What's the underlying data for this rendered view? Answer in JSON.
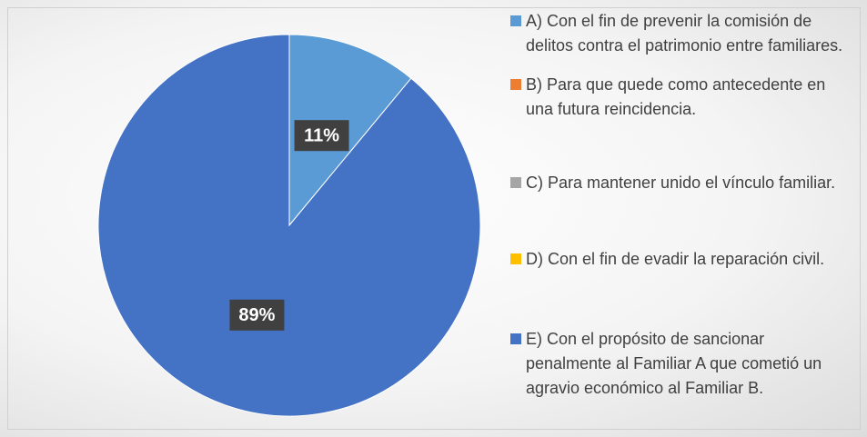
{
  "chart_data": {
    "type": "pie",
    "categories": [
      "A) Con el fin de prevenir la comisión de delitos contra el patrimonio entre familiares.",
      "B)  Para que quede como antecedente en una futura reincidencia.",
      "C)  Para mantener unido el vínculo familiar.",
      "D) Con el fin de evadir la reparación civil.",
      "E)  Con el propósito de sancionar penalmente al Familiar A que cometió un agravio económico al Familiar B."
    ],
    "values": [
      11,
      0,
      0,
      0,
      89
    ],
    "value_labels": [
      "11%",
      null,
      null,
      null,
      "89%"
    ],
    "colors": [
      "#5b9bd5",
      "#ed7d31",
      "#a5a5a5",
      "#ffc000",
      "#4472c4"
    ],
    "legend": "right"
  }
}
